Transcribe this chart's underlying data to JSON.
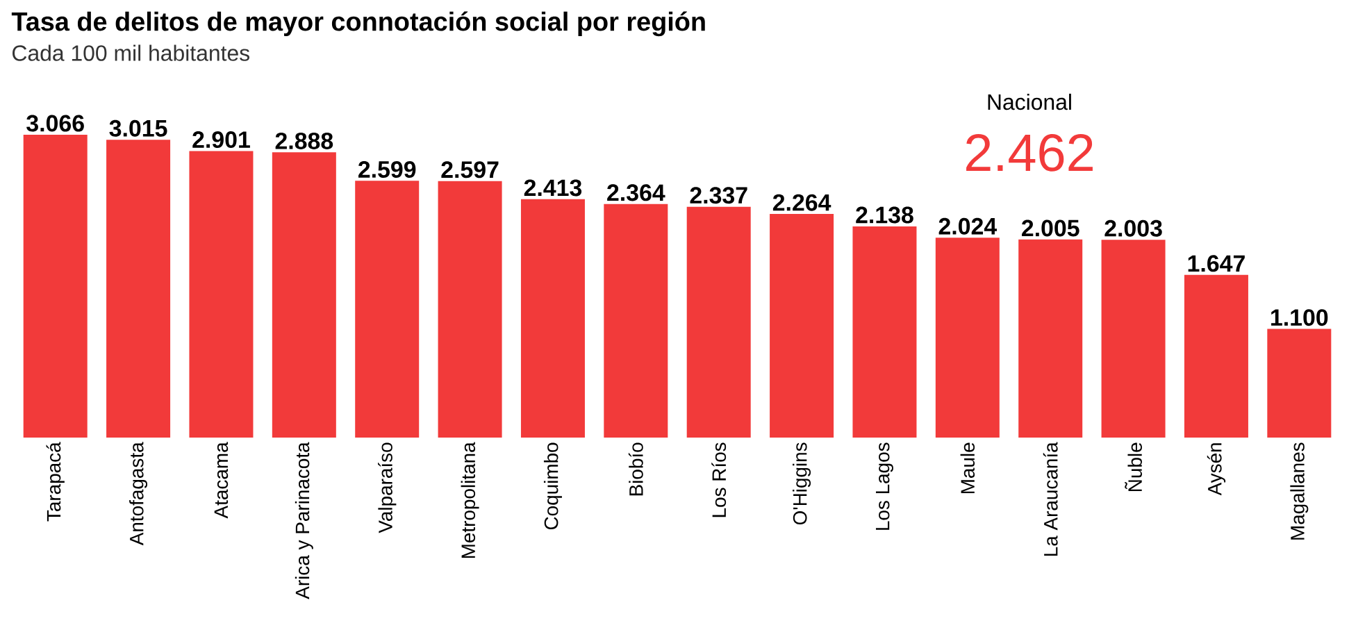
{
  "chart_data": {
    "type": "bar",
    "title": "Tasa de delitos de mayor connotación social por región",
    "subtitle": "Cada 100 mil habitantes",
    "categories": [
      "Tarapacá",
      "Antofagasta",
      "Atacama",
      "Arica y Parinacota",
      "Valparaíso",
      "Metropolitana",
      "Coquimbo",
      "Biobío",
      "Los Ríos",
      "O'Higgins",
      "Los Lagos",
      "Maule",
      "La Araucanía",
      "Ñuble",
      "Aysén",
      "Magallanes"
    ],
    "values": [
      3066,
      3015,
      2901,
      2888,
      2599,
      2597,
      2413,
      2364,
      2337,
      2264,
      2138,
      2024,
      2005,
      2003,
      1647,
      1100
    ],
    "value_labels": [
      "3.066",
      "3.015",
      "2.901",
      "2.888",
      "2.599",
      "2.597",
      "2.413",
      "2.364",
      "2.337",
      "2.264",
      "2.138",
      "2.024",
      "2.005",
      "2.003",
      "1.647",
      "1.100"
    ],
    "color": "#f23a3a",
    "annotations": [
      "Nacional",
      "2.462"
    ]
  }
}
